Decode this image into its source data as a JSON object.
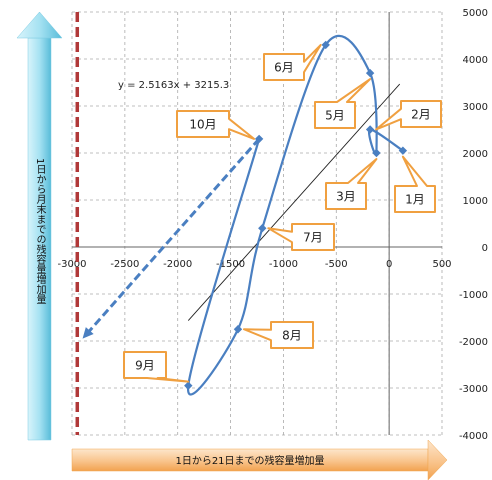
{
  "chart_data": {
    "type": "scatter",
    "xlabel": "1日から21日までの残容量増加量",
    "ylabel": "1日から月末までの残容量増加量",
    "xlim": [
      -3000,
      500
    ],
    "ylim": [
      -4000,
      5000
    ],
    "x_ticks": [
      "-3000",
      "-2500",
      "-2000",
      "-1500",
      "-1000",
      "-500",
      "0",
      "500"
    ],
    "y_ticks": [
      "5000",
      "4000",
      "3000",
      "2000",
      "1000",
      "0",
      "-1000",
      "-2000",
      "-3000",
      "-4000"
    ],
    "grid": true,
    "trendline": {
      "equation": "y = 2.5163x + 3215.3",
      "slope": 2.5163,
      "intercept": 3215.3,
      "x_range": [
        -1900,
        100
      ]
    },
    "vertical_reference": {
      "x": -2950
    },
    "series": [
      {
        "points": [
          {
            "label": "1月",
            "x": 130,
            "y": 2050
          },
          {
            "label": "2月",
            "x": -180,
            "y": 2500
          },
          {
            "label": "3月",
            "x": -120,
            "y": 2000
          },
          {
            "label": "5月",
            "x": -180,
            "y": 3700
          },
          {
            "label": "6月",
            "x": -600,
            "y": 4300
          },
          {
            "label": "7月",
            "x": -1200,
            "y": 400
          },
          {
            "label": "8月",
            "x": -1430,
            "y": -1750
          },
          {
            "label": "9月",
            "x": -1900,
            "y": -2950
          },
          {
            "label": "10月",
            "x": -1230,
            "y": 2300
          }
        ]
      }
    ],
    "forecast_arrow": {
      "from": {
        "x": -1230,
        "y": 2300
      },
      "to": {
        "x": -2900,
        "y": -1950
      }
    }
  },
  "colors": {
    "series": "#4a7fc1",
    "trend": "#222222",
    "reference": "#b03838",
    "grid": "#aaaaaa",
    "callout_border": "#f0a040",
    "x_arrow": "#f4a040",
    "y_arrow": "#66c6e0"
  }
}
